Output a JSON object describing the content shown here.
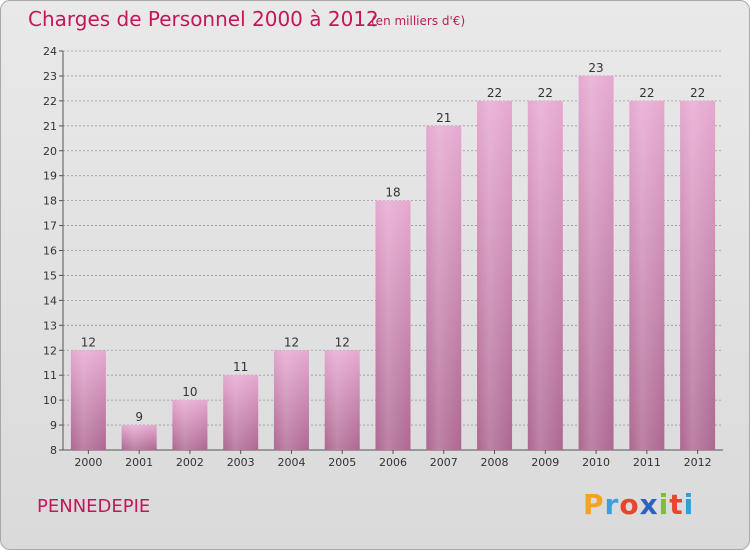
{
  "header": {
    "title": "Charges de Personnel 2000 à 2012",
    "unit": "(en milliers d'€)"
  },
  "footer": {
    "commune": "PENNEDEPIE",
    "logo": "Proxiti"
  },
  "logo_letters": [
    {
      "char": "P",
      "color": "#f4a21f"
    },
    {
      "char": "r",
      "color": "#3aa0e0"
    },
    {
      "char": "o",
      "color": "#e8442e"
    },
    {
      "char": "x",
      "color": "#2e62c2"
    },
    {
      "char": "i",
      "color": "#7cbf2f"
    },
    {
      "char": "t",
      "color": "#e8442e"
    },
    {
      "char": "i",
      "color": "#2e9fd8"
    }
  ],
  "colors": {
    "accent": "#c2185b",
    "bar_top": "#e6a8d0",
    "bar_bottom": "#ad6791",
    "grid": "#9a9a9a"
  },
  "chart_data": {
    "type": "bar",
    "title": "Charges de Personnel 2000 à 2012",
    "subtitle": "(en milliers d'€)",
    "categories": [
      "2000",
      "2001",
      "2002",
      "2003",
      "2004",
      "2005",
      "2006",
      "2007",
      "2008",
      "2009",
      "2010",
      "2011",
      "2012"
    ],
    "values": [
      12,
      9,
      10,
      11,
      12,
      12,
      18,
      21,
      22,
      22,
      23,
      22,
      22
    ],
    "ylim": [
      8,
      24
    ],
    "yticks": [
      8,
      9,
      10,
      11,
      12,
      13,
      14,
      15,
      16,
      17,
      18,
      19,
      20,
      21,
      22,
      23,
      24
    ],
    "grid": true,
    "xlabel": "",
    "ylabel": ""
  }
}
